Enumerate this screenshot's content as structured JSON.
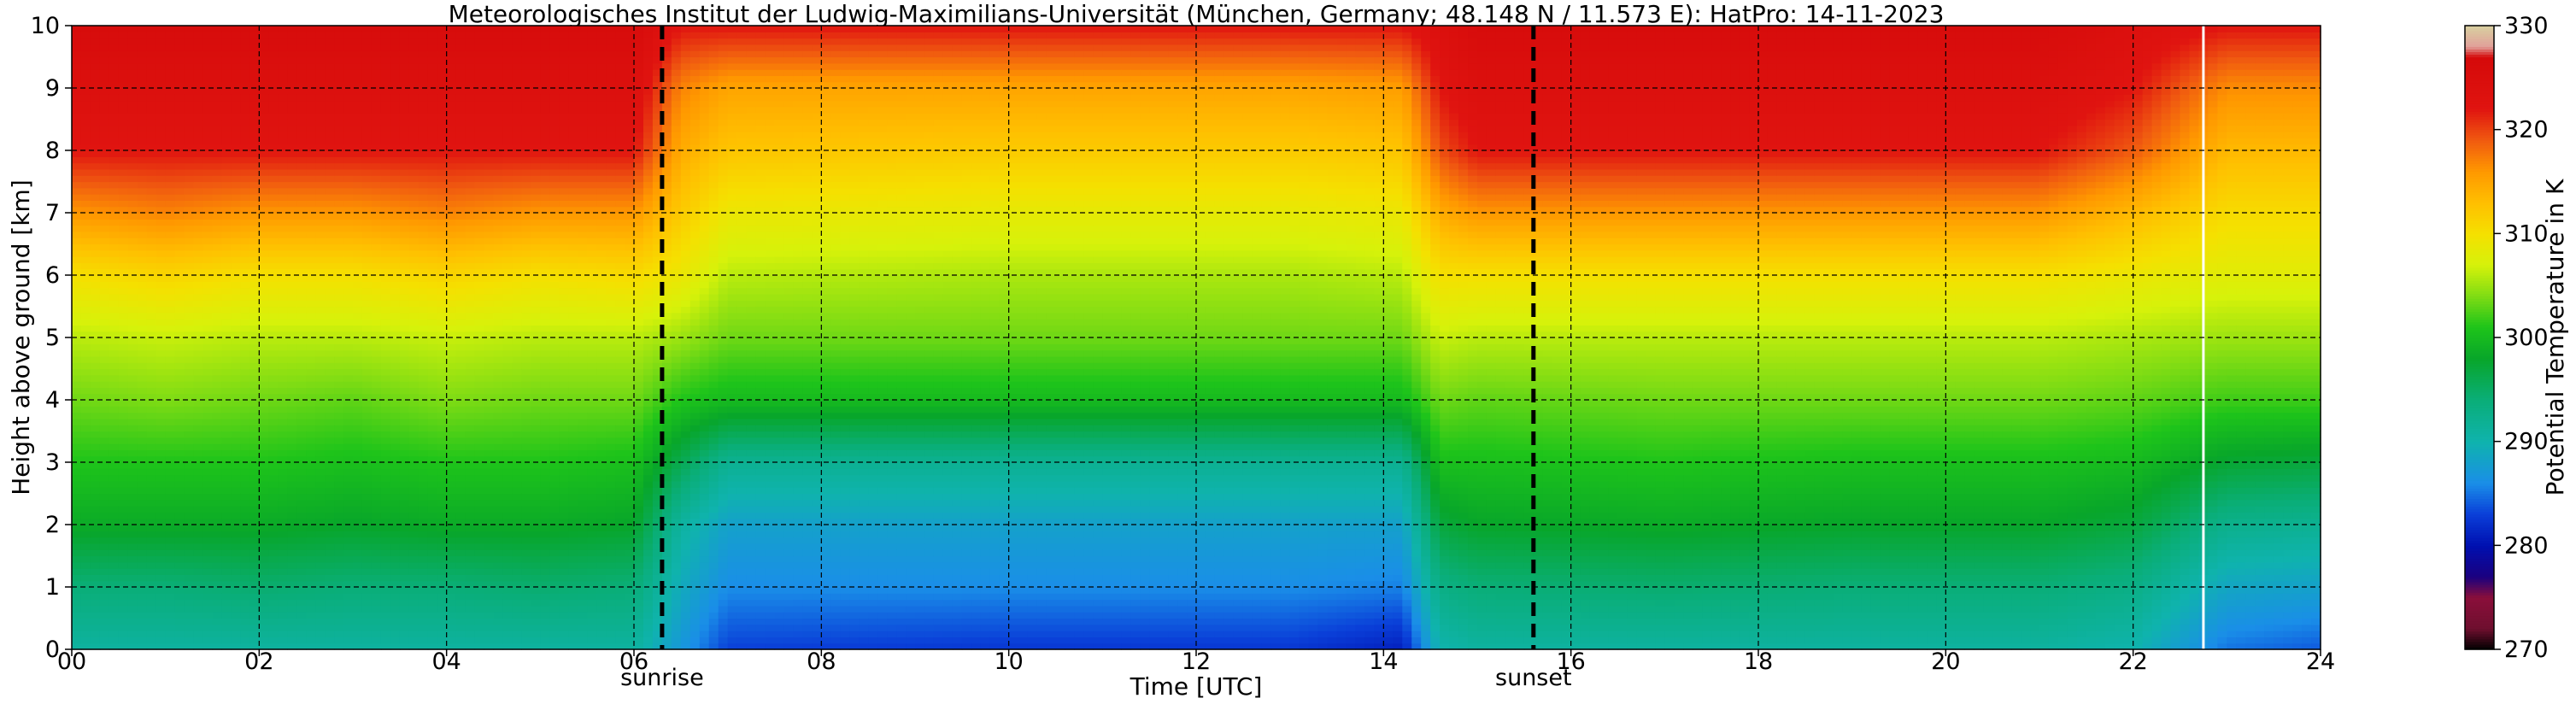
{
  "chart_data": {
    "type": "heatmap",
    "title": "Meteorologisches Institut der Ludwig-Maximilians-Universität (München, Germany; 48.148 N / 11.573 E):    HatPro: 14-11-2023",
    "xlabel": "Time [UTC]",
    "ylabel": "Height above ground [km]",
    "colorbar_label": "Potential Temperature in K",
    "xlim": [
      0,
      24
    ],
    "ylim": [
      0,
      10
    ],
    "x_ticks": [
      0,
      2,
      4,
      6,
      8,
      10,
      12,
      14,
      16,
      18,
      20,
      22,
      24
    ],
    "x_tick_labels": [
      "00",
      "02",
      "04",
      "06",
      "08",
      "10",
      "12",
      "14",
      "16",
      "18",
      "20",
      "22",
      "24"
    ],
    "y_ticks": [
      0,
      1,
      2,
      3,
      4,
      5,
      6,
      7,
      8,
      9,
      10
    ],
    "y_tick_labels": [
      "0",
      "1",
      "2",
      "3",
      "4",
      "5",
      "6",
      "7",
      "8",
      "9",
      "10"
    ],
    "colorbar_range": [
      270,
      330
    ],
    "colorbar_ticks": [
      270,
      280,
      290,
      300,
      310,
      320,
      330
    ],
    "colorbar_tick_labels": [
      "270",
      "280",
      "290",
      "300",
      "310",
      "320",
      "330"
    ],
    "grid": true,
    "events": [
      {
        "label": "sunrise",
        "time": 6.3
      },
      {
        "label": "sunset",
        "time": 15.6
      }
    ],
    "data_gap_time": 22.75,
    "colormap_stops": [
      {
        "value": 270,
        "color": "#000000"
      },
      {
        "value": 272,
        "color": "#6e0f2e"
      },
      {
        "value": 275,
        "color": "#8a0f3a"
      },
      {
        "value": 277,
        "color": "#1a0080"
      },
      {
        "value": 280,
        "color": "#0010b0"
      },
      {
        "value": 283,
        "color": "#0a3fd8"
      },
      {
        "value": 286,
        "color": "#1a8ee8"
      },
      {
        "value": 290,
        "color": "#0fb3ad"
      },
      {
        "value": 294,
        "color": "#0aae78"
      },
      {
        "value": 298,
        "color": "#08a62a"
      },
      {
        "value": 301,
        "color": "#1ec41a"
      },
      {
        "value": 304,
        "color": "#7fdc14"
      },
      {
        "value": 307,
        "color": "#d6f20a"
      },
      {
        "value": 310,
        "color": "#f5e000"
      },
      {
        "value": 313,
        "color": "#ffbf00"
      },
      {
        "value": 316,
        "color": "#ff9800"
      },
      {
        "value": 319,
        "color": "#f05a10"
      },
      {
        "value": 322,
        "color": "#e01410"
      },
      {
        "value": 327,
        "color": "#d50a0a"
      },
      {
        "value": 328,
        "color": "#e0a09a"
      },
      {
        "value": 330,
        "color": "#d8d0a0"
      }
    ],
    "profiles": [
      {
        "time": 0.0,
        "heights": [
          0,
          1,
          2,
          3,
          4,
          5,
          6,
          7,
          8,
          9,
          10
        ],
        "theta": [
          291,
          294,
          298.5,
          301,
          303.5,
          306,
          310,
          316,
          322,
          324,
          326
        ]
      },
      {
        "time": 1.0,
        "heights": [
          0,
          1,
          2,
          3,
          4,
          5,
          6,
          7,
          8,
          9,
          10
        ],
        "theta": [
          291,
          294,
          298.5,
          301,
          304,
          306.5,
          311,
          317,
          322,
          324,
          326
        ]
      },
      {
        "time": 2.0,
        "heights": [
          0,
          1,
          2,
          3,
          4,
          5,
          6,
          7,
          8,
          9,
          10
        ],
        "theta": [
          291,
          294.5,
          298.5,
          301,
          303.5,
          306,
          310,
          316,
          322,
          324,
          326
        ]
      },
      {
        "time": 3.0,
        "heights": [
          0,
          1,
          2,
          3,
          4,
          5,
          6,
          7,
          8,
          9,
          10
        ],
        "theta": [
          291,
          294,
          298,
          300.5,
          303,
          306,
          310,
          316,
          322,
          324,
          326
        ]
      },
      {
        "time": 4.0,
        "heights": [
          0,
          1,
          2,
          3,
          4,
          5,
          6,
          7,
          8,
          9,
          10
        ],
        "theta": [
          291,
          294,
          298.5,
          301,
          304,
          306.5,
          311,
          317,
          322,
          324,
          326
        ]
      },
      {
        "time": 5.0,
        "heights": [
          0,
          1,
          2,
          3,
          4,
          5,
          6,
          7,
          8,
          9,
          10
        ],
        "theta": [
          291,
          294.5,
          298.5,
          301,
          303.5,
          306,
          310,
          316,
          322,
          324,
          326
        ]
      },
      {
        "time": 6.0,
        "heights": [
          0,
          1,
          2,
          3,
          4,
          5,
          6,
          7,
          8,
          9,
          10
        ],
        "theta": [
          291,
          294,
          298,
          300.5,
          303.5,
          306,
          310.5,
          316,
          322,
          324,
          326
        ]
      },
      {
        "time": 6.5,
        "heights": [
          0,
          1,
          2,
          3,
          4,
          5,
          6,
          7,
          8,
          9,
          10
        ],
        "theta": [
          287,
          289,
          291,
          296,
          301,
          305,
          309,
          312,
          314.5,
          317,
          322
        ]
      },
      {
        "time": 7.0,
        "heights": [
          0,
          1,
          2,
          3,
          4,
          5,
          6,
          7,
          8,
          9,
          10
        ],
        "theta": [
          283,
          286,
          288,
          292,
          300,
          303.5,
          306,
          309,
          312.5,
          315,
          322
        ]
      },
      {
        "time": 10.0,
        "heights": [
          0,
          1,
          2,
          3,
          4,
          5,
          6,
          7,
          8,
          9,
          10
        ],
        "theta": [
          282.5,
          286,
          288,
          292,
          300,
          303.5,
          305.5,
          308.5,
          312,
          315,
          322
        ]
      },
      {
        "time": 13.0,
        "heights": [
          0,
          1,
          2,
          3,
          4,
          5,
          6,
          7,
          8,
          9,
          10
        ],
        "theta": [
          282.5,
          286,
          288,
          292,
          300,
          303.5,
          305.5,
          308.5,
          312,
          315,
          322
        ]
      },
      {
        "time": 14.2,
        "heights": [
          0,
          1,
          2,
          3,
          4,
          5,
          6,
          7,
          8,
          9,
          10
        ],
        "theta": [
          281,
          285.5,
          288,
          292,
          300,
          303.5,
          306,
          309,
          312.5,
          315.5,
          322
        ]
      },
      {
        "time": 14.6,
        "heights": [
          0,
          1,
          2,
          3,
          4,
          5,
          6,
          7,
          8,
          9,
          10
        ],
        "theta": [
          290,
          293,
          297,
          300.5,
          303.5,
          306.5,
          310,
          314.5,
          319.5,
          322,
          324
        ]
      },
      {
        "time": 15.0,
        "heights": [
          0,
          1,
          2,
          3,
          4,
          5,
          6,
          7,
          8,
          9,
          10
        ],
        "theta": [
          291,
          294,
          298,
          300.5,
          303,
          306,
          310,
          316,
          322,
          324,
          326
        ]
      },
      {
        "time": 17.0,
        "heights": [
          0,
          1,
          2,
          3,
          4,
          5,
          6,
          7,
          8,
          9,
          10
        ],
        "theta": [
          291,
          294.5,
          298.5,
          301,
          303.5,
          306,
          310,
          316,
          322,
          324,
          326
        ]
      },
      {
        "time": 19.0,
        "heights": [
          0,
          1,
          2,
          3,
          4,
          5,
          6,
          7,
          8,
          9,
          10
        ],
        "theta": [
          291,
          294,
          298,
          300.5,
          303.5,
          306,
          310,
          316,
          322,
          324,
          326
        ]
      },
      {
        "time": 21.0,
        "heights": [
          0,
          1,
          2,
          3,
          4,
          5,
          6,
          7,
          8,
          9,
          10
        ],
        "theta": [
          291,
          294,
          298,
          300.5,
          303.5,
          306,
          310,
          316,
          322,
          324,
          326
        ]
      },
      {
        "time": 22.0,
        "heights": [
          0,
          1,
          2,
          3,
          4,
          5,
          6,
          7,
          8,
          9,
          10
        ],
        "theta": [
          290,
          293,
          297,
          300,
          303,
          305.5,
          309,
          313.5,
          319,
          322,
          324
        ]
      },
      {
        "time": 23.0,
        "heights": [
          0,
          1,
          2,
          3,
          4,
          5,
          6,
          7,
          8,
          9,
          10
        ],
        "theta": [
          285,
          288.5,
          292.5,
          297.5,
          302,
          305,
          308,
          310.5,
          313.5,
          316.5,
          322
        ]
      },
      {
        "time": 24.0,
        "heights": [
          0,
          1,
          2,
          3,
          4,
          5,
          6,
          7,
          8,
          9,
          10
        ],
        "theta": [
          284,
          288,
          292,
          297,
          302,
          305,
          308,
          310.5,
          313.5,
          316.5,
          322
        ]
      }
    ]
  }
}
